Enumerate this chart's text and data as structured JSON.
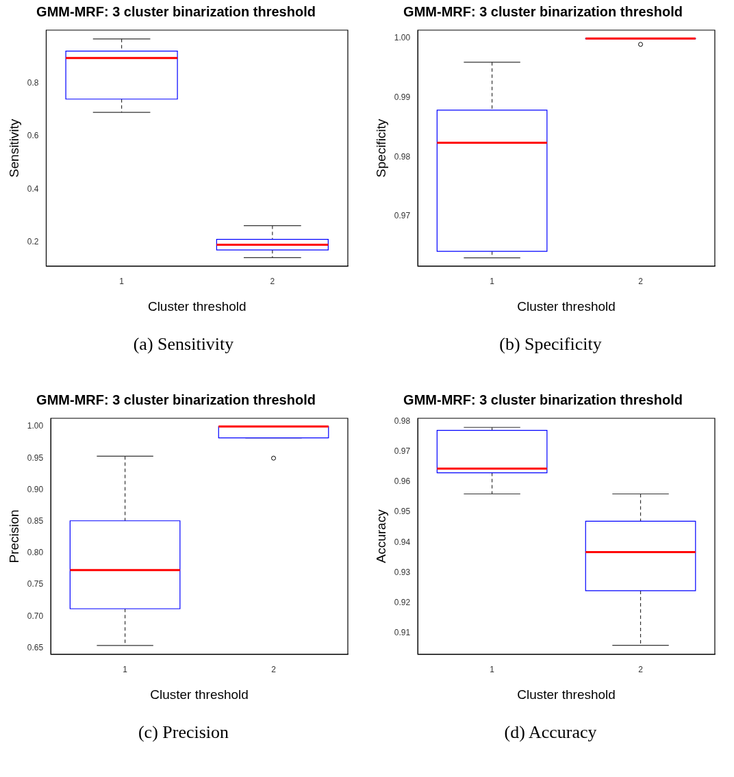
{
  "chart_data": [
    {
      "type": "box",
      "title": "GMM-MRF: 3 cluster binarization threshold",
      "xlabel": "Cluster threshold",
      "ylabel": "Sensitivity",
      "categories": [
        "1",
        "2"
      ],
      "ylim": [
        0.11,
        1.0
      ],
      "yticks": [
        0.2,
        0.4,
        0.6,
        0.8
      ],
      "annotations": [
        "(a) Sensitivity"
      ],
      "series": [
        {
          "color": "#0000ff",
          "boxes": [
            {
              "low": 0.69,
              "q1": 0.74,
              "median": 0.895,
              "q3": 0.921,
              "high": 0.967
            },
            {
              "low": 0.142,
              "q1": 0.171,
              "median": 0.191,
              "q3": 0.211,
              "high": 0.263
            }
          ]
        }
      ]
    },
    {
      "type": "box",
      "title": "GMM-MRF: 3 cluster binarization threshold",
      "xlabel": "Cluster threshold",
      "ylabel": "Specificity",
      "categories": [
        "1",
        "2"
      ],
      "ylim": [
        0.9616,
        1.0014
      ],
      "yticks": [
        0.97,
        0.98,
        0.99,
        {
          "value": 1,
          "label": "1.00"
        }
      ],
      "annotations": [
        "(b) Specificity"
      ],
      "series": [
        {
          "color": "#0000ff",
          "boxes": [
            {
              "low": 0.963,
              "q1": 0.9641,
              "median": 0.9824,
              "q3": 0.9879,
              "high": 0.996
            },
            {
              "low": 1,
              "q1": 1,
              "median": 1,
              "q3": 1,
              "high": 1,
              "outliers": [
                0.999
              ]
            }
          ]
        }
      ]
    },
    {
      "type": "box",
      "title": "GMM-MRF: 3 cluster binarization threshold",
      "xlabel": "Cluster threshold",
      "ylabel": "Precision",
      "categories": [
        "1",
        "2"
      ],
      "ylim": [
        0.64,
        1.013
      ],
      "yticks": [
        0.65,
        {
          "value": 0.7,
          "label": "0.70"
        },
        0.75,
        {
          "value": 0.8,
          "label": "0.80"
        },
        0.85,
        {
          "value": 0.9,
          "label": "0.90"
        },
        0.95,
        {
          "value": 1,
          "label": "1.00"
        }
      ],
      "annotations": [
        "(c) Precision"
      ],
      "series": [
        {
          "color": "#0000ff",
          "boxes": [
            {
              "low": 0.654,
              "q1": 0.712,
              "median": 0.773,
              "q3": 0.851,
              "high": 0.953
            },
            {
              "low": 0.982,
              "q1": 0.982,
              "median": 1,
              "q3": 1,
              "high": 1,
              "outliers": [
                0.95
              ]
            }
          ]
        }
      ]
    },
    {
      "type": "box",
      "title": "GMM-MRF: 3 cluster binarization threshold",
      "xlabel": "Cluster threshold",
      "ylabel": "Accuracy",
      "categories": [
        "1",
        "2"
      ],
      "ylim": [
        0.903,
        0.981
      ],
      "yticks": [
        0.91,
        0.92,
        0.93,
        0.94,
        0.95,
        0.96,
        0.97,
        0.98
      ],
      "annotations": [
        "(d) Accuracy"
      ],
      "series": [
        {
          "color": "#0000ff",
          "boxes": [
            {
              "low": 0.956,
              "q1": 0.963,
              "median": 0.9644,
              "q3": 0.977,
              "high": 0.978
            },
            {
              "low": 0.906,
              "q1": 0.924,
              "median": 0.9368,
              "q3": 0.947,
              "high": 0.956
            }
          ]
        }
      ]
    }
  ]
}
